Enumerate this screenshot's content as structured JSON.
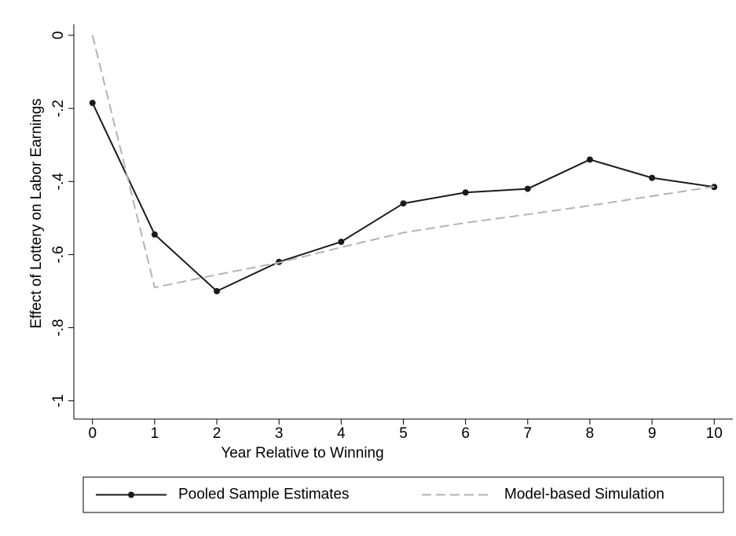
{
  "chart_data": {
    "type": "line",
    "x_label": "Year Relative to Winning",
    "y_label": "Effect of Lottery on Labor Earnings",
    "x": [
      0,
      1,
      2,
      3,
      4,
      5,
      6,
      7,
      8,
      9,
      10
    ],
    "series": [
      {
        "name": "Pooled Sample Estimates",
        "color": "#1a1a1a",
        "line_style": "solid",
        "markers": true,
        "values": [
          -0.185,
          -0.545,
          -0.7,
          -0.62,
          -0.565,
          -0.46,
          -0.43,
          -0.42,
          -0.34,
          -0.39,
          -0.415
        ]
      },
      {
        "name": "Model-based Simulation",
        "color": "#b3b3b3",
        "line_style": "dashed",
        "markers": false,
        "values": [
          0,
          -0.69,
          -0.655,
          -0.622,
          -0.58,
          -0.54,
          -0.513,
          -0.49,
          -0.466,
          -0.44,
          -0.414
        ]
      }
    ],
    "xlim": [
      -0.3,
      10.3
    ],
    "xticks": [
      0,
      1,
      2,
      3,
      4,
      5,
      6,
      7,
      8,
      9,
      10
    ],
    "ylim": [
      -1.05,
      0.03
    ],
    "yticks": [
      0,
      {
        "value": -0.2,
        "label": "-.2"
      },
      {
        "value": -0.4,
        "label": "-.4"
      },
      {
        "value": -0.6,
        "label": "-.6"
      },
      {
        "value": -0.8,
        "label": "-.8"
      },
      {
        "value": -1,
        "label": "-1"
      }
    ],
    "grid": false,
    "legend": "bottom"
  }
}
